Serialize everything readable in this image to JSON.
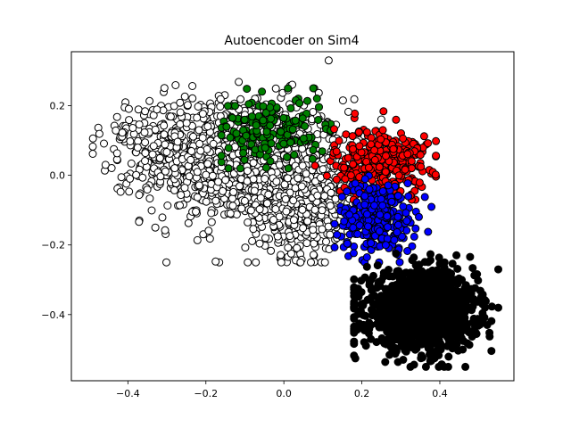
{
  "chart_data": {
    "type": "scatter",
    "title": "Autoencoder on Sim4",
    "xlabel": "",
    "ylabel": "",
    "xlim": [
      -0.545,
      0.59
    ],
    "ylim": [
      -0.59,
      0.355
    ],
    "xticks": [
      -0.4,
      -0.2,
      0.0,
      0.2,
      0.4
    ],
    "xtick_labels": [
      "−0.4",
      "−0.2",
      "0.0",
      "0.2",
      "0.4"
    ],
    "yticks": [
      -0.4,
      -0.2,
      0.0,
      0.2
    ],
    "ytick_labels": [
      "−0.4",
      "−0.2",
      "0.0",
      "0.2"
    ],
    "grid": false,
    "legend": "none",
    "series": [
      {
        "color": "#ffffff",
        "points": 1500,
        "clusters": [
          {
            "cx": -0.1,
            "cy": 0.04,
            "sx": 0.13,
            "sy": 0.09,
            "n": 1050
          },
          {
            "cx": 0.05,
            "cy": -0.1,
            "sx": 0.07,
            "sy": 0.07,
            "n": 300
          },
          {
            "cx": -0.32,
            "cy": 0.1,
            "sx": 0.07,
            "sy": 0.06,
            "n": 150
          }
        ],
        "extent": {
          "x": [
            -0.49,
            0.25
          ],
          "y": [
            -0.25,
            0.33
          ]
        }
      },
      {
        "color": "#008000",
        "points": 160,
        "clusters": [
          {
            "cx": -0.03,
            "cy": 0.13,
            "sx": 0.07,
            "sy": 0.05,
            "n": 160
          }
        ],
        "extent": {
          "x": [
            -0.16,
            0.12
          ],
          "y": [
            0.02,
            0.25
          ]
        }
      },
      {
        "color": "#ff0000",
        "points": 320,
        "clusters": [
          {
            "cx": 0.25,
            "cy": 0.04,
            "sx": 0.06,
            "sy": 0.05,
            "n": 320
          }
        ],
        "extent": {
          "x": [
            0.08,
            0.39
          ],
          "y": [
            -0.07,
            0.25
          ]
        }
      },
      {
        "color": "#0000ff",
        "points": 300,
        "clusters": [
          {
            "cx": 0.24,
            "cy": -0.12,
            "sx": 0.05,
            "sy": 0.05,
            "n": 300
          }
        ],
        "extent": {
          "x": [
            0.13,
            0.38
          ],
          "y": [
            -0.25,
            0.0
          ]
        }
      },
      {
        "color": "#000000",
        "points": 1300,
        "clusters": [
          {
            "cx": 0.35,
            "cy": -0.39,
            "sx": 0.07,
            "sy": 0.055,
            "n": 1300
          }
        ],
        "extent": {
          "x": [
            0.18,
            0.55
          ],
          "y": [
            -0.55,
            -0.19
          ]
        }
      }
    ]
  }
}
